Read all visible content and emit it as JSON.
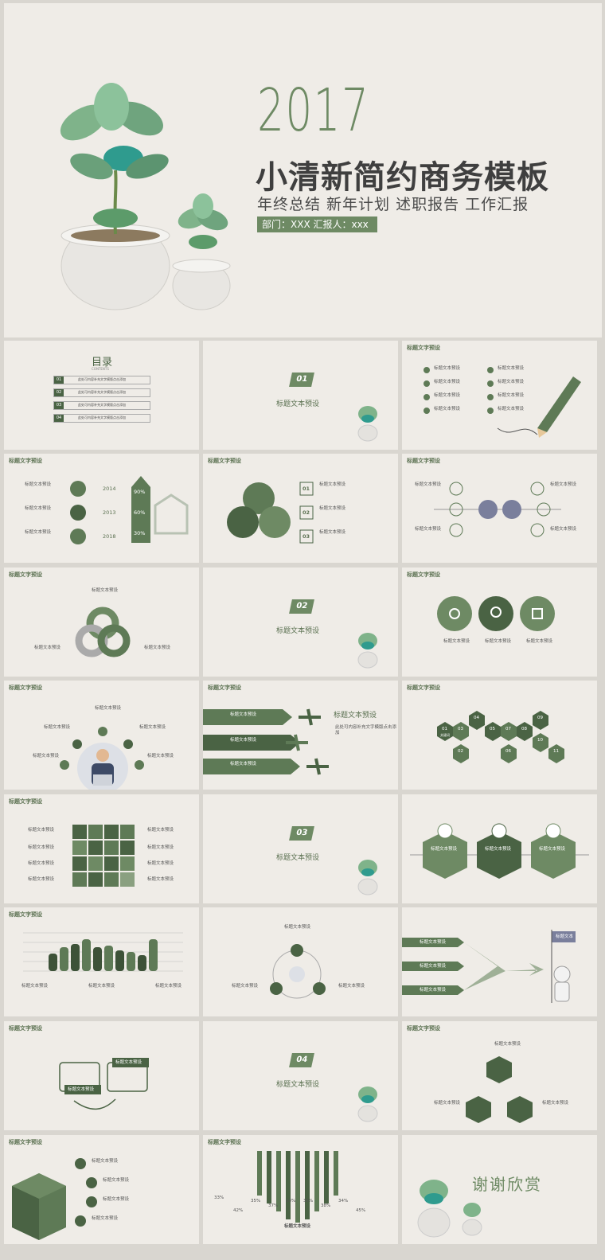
{
  "cover": {
    "year": "2017",
    "title": "小清新简约商务模板",
    "subtitle": "年终总结  新年计划  述职报告  工作汇报",
    "tag": "部门：XXX   汇报人：xxx"
  },
  "header_label": "标题文字预设",
  "toc": {
    "title": "目录",
    "subtitle": "CONTENTS",
    "items": [
      {
        "num": "01",
        "text": "此处可内容补充文字模版点击添加"
      },
      {
        "num": "02",
        "text": "此处可内容补充文字模版点击添加"
      },
      {
        "num": "03",
        "text": "此处可内容补充文字模版点击添加"
      },
      {
        "num": "04",
        "text": "此处可内容补充文字模版点击添加"
      }
    ]
  },
  "sections": [
    {
      "num": "01",
      "title": "标题文本预设"
    },
    {
      "num": "02",
      "title": "标题文本预设"
    },
    {
      "num": "03",
      "title": "标题文本预设"
    },
    {
      "num": "04",
      "title": "标题文本预设"
    }
  ],
  "text": {
    "item_title": "标题文本预设",
    "body": "此处可内容补充文字模版点击添加",
    "click": "(建议使用主题字体)"
  },
  "timeline": {
    "years": [
      "2014",
      "2013",
      "2018"
    ],
    "percents": [
      "90%",
      "60%",
      "30%"
    ]
  },
  "numbered": [
    "01",
    "02",
    "03"
  ],
  "hex_keywords": {
    "nums": [
      "01",
      "02",
      "03",
      "04",
      "05",
      "06",
      "07",
      "08",
      "09",
      "10",
      "11"
    ],
    "label": "关键词"
  },
  "bar_chart": {
    "chart_data": {
      "type": "bar",
      "categories": [
        "1",
        "2",
        "3",
        "4",
        "5",
        "6",
        "7",
        "8",
        "9",
        "10"
      ],
      "values": [
        22,
        30,
        34,
        40,
        30,
        32,
        26,
        24,
        20,
        40
      ],
      "ylim": [
        0,
        50
      ]
    }
  },
  "flag_label": "标题文本",
  "stair_percents": [
    "33%",
    "42%",
    "35%",
    "37%",
    "33%",
    "35%",
    "38%",
    "34%",
    "45%"
  ],
  "thanks": "谢谢欣赏",
  "colors": {
    "accent": "#6e8a64",
    "dark": "#4a6344",
    "bg": "#efece7"
  }
}
